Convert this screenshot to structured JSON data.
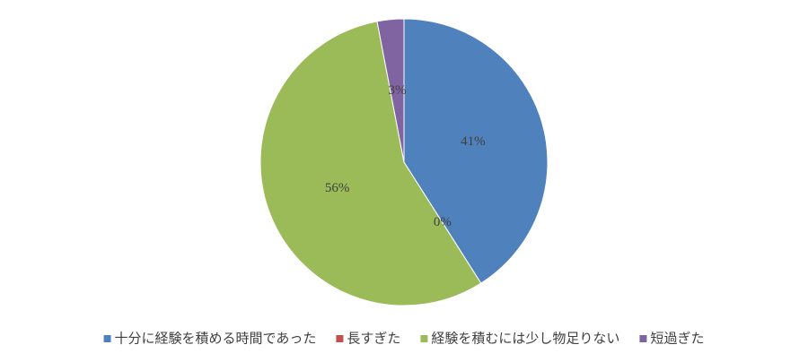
{
  "chart_data": {
    "type": "pie",
    "categories": [
      "十分に経験を積める時間であった",
      "長すぎた",
      "経験を積むには少し物足りない",
      "短過ぎた"
    ],
    "values": [
      41,
      0,
      56,
      3
    ],
    "value_labels": [
      "41%",
      "0%",
      "56%",
      "3%"
    ],
    "colors": [
      "#4f81bd",
      "#c0504d",
      "#9bbb59",
      "#8064a2"
    ],
    "legend": "bottom"
  }
}
